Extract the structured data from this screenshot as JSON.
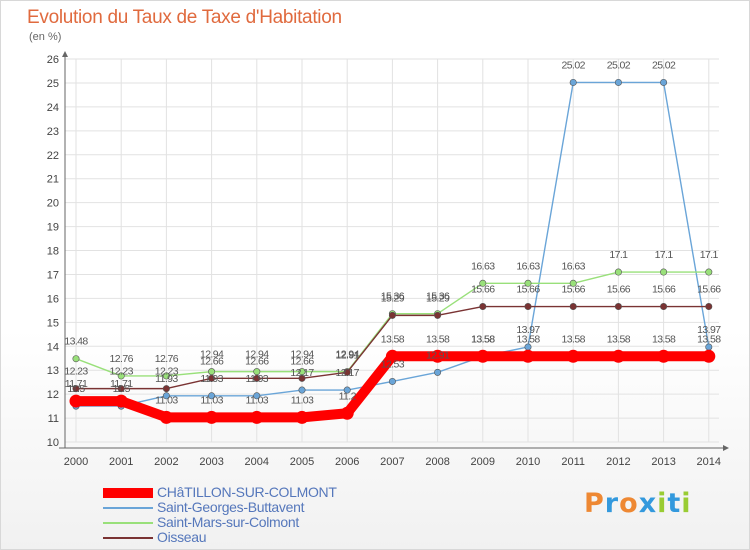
{
  "chart_data": {
    "type": "line",
    "title": "Evolution du Taux de Taxe d'Habitation",
    "ylabel": "(en %)",
    "x": [
      "2000",
      "2001",
      "2002",
      "2003",
      "2004",
      "2005",
      "2006",
      "2007",
      "2008",
      "2009",
      "2010",
      "2011",
      "2012",
      "2013",
      "2014"
    ],
    "ylim": [
      10,
      26
    ],
    "yticks": [
      "10",
      "11",
      "12",
      "13",
      "14",
      "15",
      "16",
      "17",
      "18",
      "19",
      "20",
      "21",
      "22",
      "23",
      "24",
      "25",
      "26"
    ],
    "grid": true,
    "legend_position": "bottom-left",
    "series": [
      {
        "name": "CHâTILLON-SUR-COLMONT",
        "color": "#ff0000",
        "values": [
          11.71,
          11.71,
          11.03,
          11.03,
          11.03,
          11.03,
          11.2,
          13.58,
          13.58,
          13.58,
          13.58,
          13.58,
          13.58,
          13.58,
          13.58
        ],
        "labels": [
          "11.71",
          "11.71",
          "11.03",
          "11.03",
          "11.03",
          "11.03",
          "11.2",
          "13.58",
          "13.58",
          "13.58",
          "13.58",
          "13.58",
          "13.58",
          "13.58",
          "13.58"
        ]
      },
      {
        "name": "Saint-Georges-Buttavent",
        "color": "#6aa5d8",
        "values": [
          11.5,
          11.5,
          11.93,
          11.93,
          11.93,
          12.17,
          12.17,
          12.53,
          12.91,
          13.58,
          13.97,
          25.02,
          25.02,
          25.02,
          13.97
        ],
        "labels": [
          "11.5",
          "11.5",
          "11.93",
          "11.93",
          "11.93",
          "12.17",
          "12.17",
          "12.53",
          "12.91",
          "13.58",
          "13.97",
          "25.02",
          "25.02",
          "25.02",
          "13.97"
        ]
      },
      {
        "name": "Saint-Mars-sur-Colmont",
        "color": "#99e07a",
        "values": [
          13.48,
          12.76,
          12.76,
          12.94,
          12.94,
          12.94,
          12.94,
          15.36,
          15.36,
          16.63,
          16.63,
          16.63,
          17.1,
          17.1,
          17.1
        ],
        "labels": [
          "13.48",
          "12.76",
          "12.76",
          "12.94",
          "12.94",
          "12.94",
          "12.94",
          "15.36",
          "15.36",
          "16.63",
          "16.63",
          "16.63",
          "17.1",
          "17.1",
          "17.1"
        ]
      },
      {
        "name": "Oisseau",
        "color": "#7a3333",
        "values": [
          12.23,
          12.23,
          12.23,
          12.66,
          12.66,
          12.66,
          12.91,
          15.29,
          15.29,
          15.66,
          15.66,
          15.66,
          15.66,
          15.66,
          15.66
        ],
        "labels": [
          "12.23",
          "12.23",
          "12.23",
          "12.66",
          "12.66",
          "12.66",
          "12.91",
          "15.29",
          "15.29",
          "15.66",
          "15.66",
          "15.66",
          "15.66",
          "15.66",
          "15.66"
        ]
      }
    ]
  },
  "logo": {
    "text": "Proxiti",
    "colors": [
      "#ee8833",
      "#3399dd",
      "#ee8833",
      "#3399dd",
      "#99cc33",
      "#3399dd",
      "#99cc33"
    ]
  }
}
